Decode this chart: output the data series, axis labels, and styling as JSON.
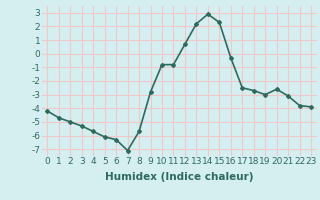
{
  "x": [
    0,
    1,
    2,
    3,
    4,
    5,
    6,
    7,
    8,
    9,
    10,
    11,
    12,
    13,
    14,
    15,
    16,
    17,
    18,
    19,
    20,
    21,
    22,
    23
  ],
  "y": [
    -4.2,
    -4.7,
    -5.0,
    -5.3,
    -5.7,
    -6.1,
    -6.3,
    -7.1,
    -5.7,
    -2.8,
    -0.8,
    -0.8,
    0.7,
    2.2,
    2.9,
    2.3,
    -0.3,
    -2.5,
    -2.7,
    -3.0,
    -2.6,
    -3.1,
    -3.8,
    -3.9
  ],
  "line_color": "#2e6b5e",
  "marker": "D",
  "marker_size": 2,
  "bg_color": "#d5eef0",
  "grid_color": "#f0c8c8",
  "xlabel": "Humidex (Indice chaleur)",
  "xlim": [
    -0.5,
    23.5
  ],
  "ylim": [
    -7.5,
    3.5
  ],
  "yticks": [
    -7,
    -6,
    -5,
    -4,
    -3,
    -2,
    -1,
    0,
    1,
    2,
    3
  ],
  "xticks": [
    0,
    1,
    2,
    3,
    4,
    5,
    6,
    7,
    8,
    9,
    10,
    11,
    12,
    13,
    14,
    15,
    16,
    17,
    18,
    19,
    20,
    21,
    22,
    23
  ],
  "xlabel_fontsize": 7.5,
  "tick_fontsize": 6.5,
  "line_width": 1.2
}
